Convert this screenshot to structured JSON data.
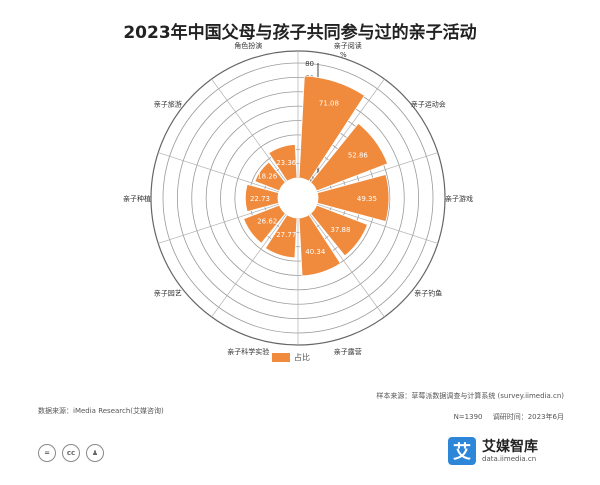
{
  "chart_data": {
    "type": "polar-bar",
    "title": "2023年中国父母与孩子共同参与过的亲子活动",
    "unit_label": "%",
    "rlim": [
      0,
      80
    ],
    "rticks": [
      0,
      10,
      20,
      30,
      40,
      50,
      60,
      70,
      80
    ],
    "grid": true,
    "legend_position": "bottom-center",
    "categories": [
      "亲子阅读",
      "亲子运动会",
      "亲子游戏",
      "亲子钓鱼",
      "亲子露营",
      "亲子科学实验",
      "亲子园艺",
      "亲子种植",
      "亲子旅游",
      "角色扮演"
    ],
    "series": [
      {
        "name": "占比",
        "color": "#f08a3c",
        "values": [
          71.08,
          52.86,
          49.35,
          37.88,
          40.34,
          27.77,
          26.62,
          22.73,
          18.26,
          23.36
        ]
      }
    ]
  },
  "source_left": "数据来源：iMedia Research(艾媒咨询)",
  "source_right": {
    "line1": "样本来源：草莓派数据调查与计算系统 (survey.iimedia.cn)",
    "sample_size": "N=1390",
    "survey_time": "调研时间：2023年6月"
  },
  "license_icons": [
    "cc-by-icon",
    "cc-icon",
    "person-icon"
  ],
  "brand": {
    "mark": "艾",
    "name": "艾媒智库",
    "url": "data.iimedia.cn"
  }
}
